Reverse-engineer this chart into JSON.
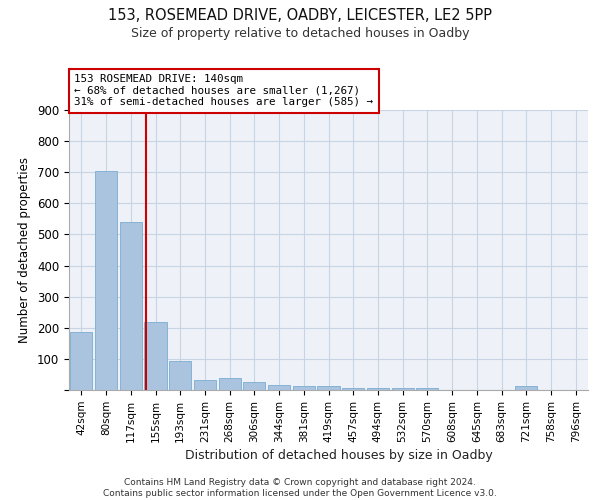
{
  "title": "153, ROSEMEAD DRIVE, OADBY, LEICESTER, LE2 5PP",
  "subtitle": "Size of property relative to detached houses in Oadby",
  "xlabel": "Distribution of detached houses by size in Oadby",
  "ylabel": "Number of detached properties",
  "bin_labels": [
    "42sqm",
    "80sqm",
    "117sqm",
    "155sqm",
    "193sqm",
    "231sqm",
    "268sqm",
    "306sqm",
    "344sqm",
    "381sqm",
    "419sqm",
    "457sqm",
    "494sqm",
    "532sqm",
    "570sqm",
    "608sqm",
    "645sqm",
    "683sqm",
    "721sqm",
    "758sqm",
    "796sqm"
  ],
  "bar_values": [
    185,
    705,
    540,
    220,
    92,
    32,
    40,
    25,
    15,
    12,
    12,
    8,
    8,
    8,
    8,
    0,
    0,
    0,
    12,
    0,
    0
  ],
  "bar_color": "#aac4e0",
  "bar_edgecolor": "#7aadd0",
  "vline_color": "#cc0000",
  "annotation_text": "153 ROSEMEAD DRIVE: 140sqm\n← 68% of detached houses are smaller (1,267)\n31% of semi-detached houses are larger (585) →",
  "annotation_box_facecolor": "#ffffff",
  "annotation_box_edgecolor": "#cc0000",
  "ylim": [
    0,
    900
  ],
  "yticks": [
    0,
    100,
    200,
    300,
    400,
    500,
    600,
    700,
    800,
    900
  ],
  "footer_text": "Contains HM Land Registry data © Crown copyright and database right 2024.\nContains public sector information licensed under the Open Government Licence v3.0.",
  "background_color": "#eef2f8",
  "grid_color": "#c8d4e4",
  "spine_color": "#aaaaaa"
}
